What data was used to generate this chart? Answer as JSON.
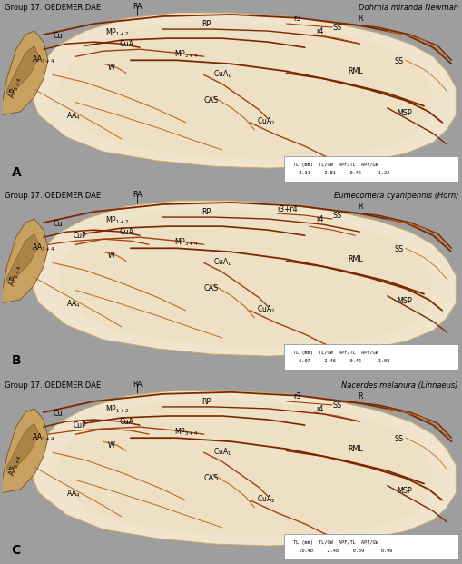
{
  "background_color": "#9e9e9e",
  "panel_bg": "#b8b0a0",
  "wing_fill": "#e8d8b8",
  "wing_fill2": "#f0e4cc",
  "wing_edge": "#c8a870",
  "base_fill": "#c8a060",
  "base_edge": "#7a5020",
  "vein_dark": "#7a2800",
  "vein_med": "#a04010",
  "vein_light": "#c06820",
  "panels": [
    {
      "label": "A",
      "group_text": "Group 17. OEDEMERIDAE",
      "species_text": "Dohrnia miranda Newman",
      "tl_mm": "8.31",
      "tl_gw": "2.81",
      "apf_tl": "0.44",
      "apf_gw": "1.22",
      "has_cup": false,
      "r3r4_combined": false
    },
    {
      "label": "B",
      "group_text": "Group 17. OEDEMERIDAE",
      "species_text": "Eumecomera cyanipennis (Horn)",
      "tl_mm": "6.07",
      "tl_gw": "2.46",
      "apf_tl": "0.44",
      "apf_gw": "1.08",
      "has_cup": true,
      "r3r4_combined": true
    },
    {
      "label": "C",
      "group_text": "Group 17. OEDEMERIDAE",
      "species_text": "Nacerdes melanura (Linnaeus)",
      "tl_mm": "10.40",
      "tl_gw": "2.48",
      "apf_tl": "0.39",
      "apf_gw": "0.96",
      "has_cup": true,
      "r3r4_combined": false
    }
  ],
  "header_fs": 6.0,
  "label_fs": 5.8,
  "panel_letter_fs": 10,
  "table_fs": 3.8
}
